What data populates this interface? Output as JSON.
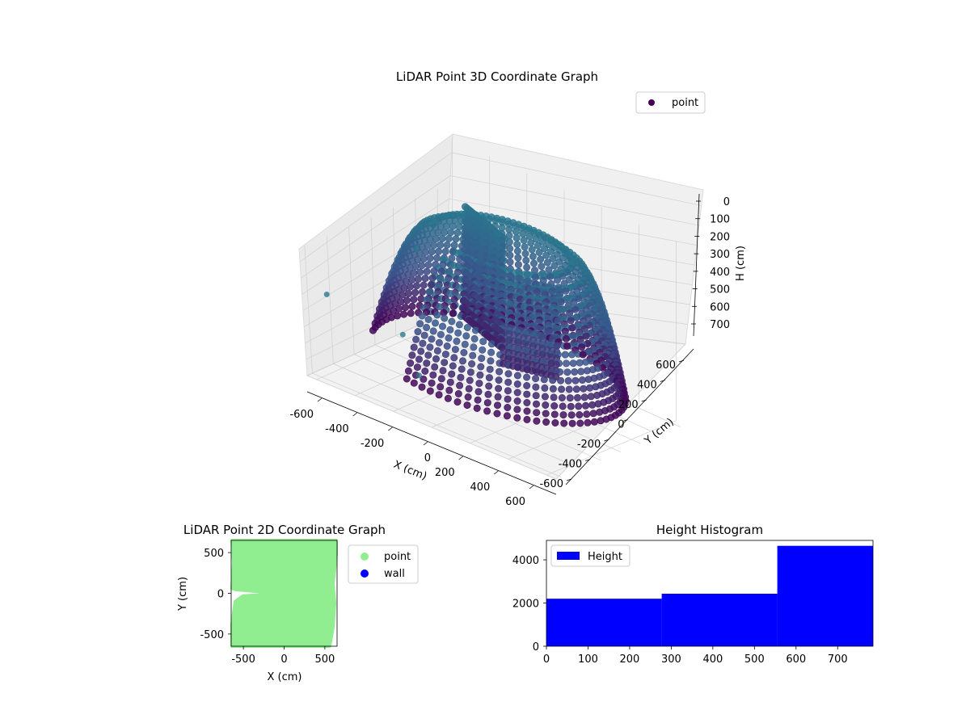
{
  "chart_data": [
    {
      "type": "scatter",
      "projection": "3d",
      "title": "LiDAR Point 3D Coordinate Graph",
      "xlabel": "X (cm)",
      "ylabel": "Y (cm)",
      "zlabel": "H (cm)",
      "xlim": [
        -650,
        650
      ],
      "ylim": [
        -650,
        650
      ],
      "zlim": [
        780,
        0
      ],
      "x_ticks": [
        "-600",
        "-400",
        "-200",
        "0",
        "200",
        "400",
        "600"
      ],
      "y_ticks": [
        "-600",
        "-400",
        "-200",
        "0",
        "200",
        "400",
        "600"
      ],
      "z_ticks": [
        "0",
        "100",
        "200",
        "300",
        "400",
        "500",
        "600",
        "700"
      ],
      "grid": true,
      "legend_position": "top-right",
      "colormap": "viridis",
      "series": [
        {
          "name": "point",
          "color": "#440154"
        }
      ],
      "points": [
        [
          -600,
          -600,
          380
        ],
        [
          -200,
          -600,
          420
        ],
        [
          -550,
          200,
          320
        ],
        [
          -80,
          -650,
          560
        ]
      ]
    },
    {
      "type": "scatter",
      "title": "LiDAR Point 2D Coordinate Graph",
      "xlabel": "X (cm)",
      "ylabel": "Y (cm)",
      "xlim": [
        -650,
        650
      ],
      "ylim": [
        -650,
        650
      ],
      "x_ticks": [
        "-500",
        "0",
        "500"
      ],
      "y_ticks": [
        "-500",
        "0",
        "500"
      ],
      "legend_position": "outside-right",
      "series": [
        {
          "name": "point",
          "color": "#90ee90"
        },
        {
          "name": "wall",
          "color": "#0000ff"
        }
      ]
    },
    {
      "type": "bar",
      "title": "Height Histogram",
      "bins": [
        [
          0,
          277
        ],
        [
          277,
          555
        ],
        [
          555,
          785
        ]
      ],
      "values": [
        2200,
        2430,
        4650
      ],
      "xlim": [
        0,
        785
      ],
      "ylim": [
        0,
        4900
      ],
      "x_ticks": [
        "0",
        "100",
        "200",
        "300",
        "400",
        "500",
        "600",
        "700"
      ],
      "y_ticks": [
        "0",
        "2000",
        "4000"
      ],
      "legend_position": "top-left",
      "series": [
        {
          "name": "Height",
          "color": "#0000ff"
        }
      ]
    }
  ]
}
